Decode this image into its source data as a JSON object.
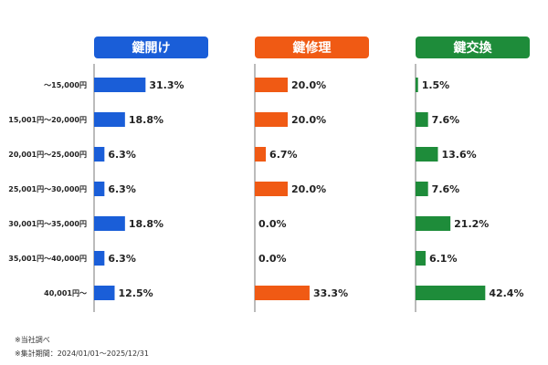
{
  "chart_data": [
    {
      "type": "bar",
      "title": "鍵開け",
      "color": "#1a5ed8",
      "categories": [
        "～15,000円",
        "15,001円～20,000円",
        "20,001円～25,000円",
        "25,001円～30,000円",
        "30,001円～35,000円",
        "35,001円～40,000円",
        "40,001円～"
      ],
      "values": [
        31.3,
        18.8,
        6.3,
        6.3,
        18.8,
        6.3,
        12.5
      ],
      "value_labels": [
        "31.3%",
        "18.8%",
        "6.3%",
        "6.3%",
        "18.8%",
        "6.3%",
        "12.5%"
      ],
      "orientation": "horizontal"
    },
    {
      "type": "bar",
      "title": "鍵修理",
      "color": "#f05a14",
      "categories": [
        "～15,000円",
        "15,001円～20,000円",
        "20,001円～25,000円",
        "25,001円～30,000円",
        "30,001円～35,000円",
        "35,001円～40,000円",
        "40,001円～"
      ],
      "values": [
        20.0,
        20.0,
        6.7,
        20.0,
        0.0,
        0.0,
        33.3
      ],
      "value_labels": [
        "20.0%",
        "20.0%",
        "6.7%",
        "20.0%",
        "0.0%",
        "0.0%",
        "33.3%"
      ],
      "orientation": "horizontal"
    },
    {
      "type": "bar",
      "title": "鍵交換",
      "color": "#1e8c3a",
      "categories": [
        "～15,000円",
        "15,001円～20,000円",
        "20,001円～25,000円",
        "25,001円～30,000円",
        "30,001円～35,000円",
        "35,001円～40,000円",
        "40,001円～"
      ],
      "values": [
        1.5,
        7.6,
        13.6,
        7.6,
        21.2,
        6.1,
        42.4
      ],
      "value_labels": [
        "1.5%",
        "7.6%",
        "13.6%",
        "7.6%",
        "21.2%",
        "6.1%",
        "42.4%"
      ],
      "orientation": "horizontal"
    }
  ],
  "notes": {
    "line1": "※当社調べ",
    "line2": "※集計期間：2024/01/01～2025/12/31"
  }
}
